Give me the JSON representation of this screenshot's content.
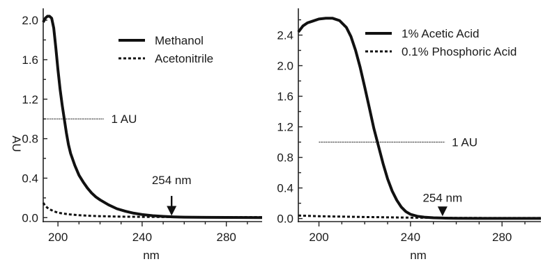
{
  "chart_data": [
    {
      "type": "line",
      "panel": "left",
      "xlabel": "nm",
      "ylabel": "AU",
      "xlim": [
        193,
        297
      ],
      "ylim": [
        -0.04,
        2.12
      ],
      "xticks": [
        "200",
        "240",
        "280"
      ],
      "yticks": [
        "0.0",
        "0.4",
        "0.8",
        "1.2",
        "1.6",
        "2.0"
      ],
      "series": [
        {
          "name": "Methanol",
          "style": "solid",
          "x": [
            193,
            194,
            195,
            196,
            197,
            198,
            199,
            200,
            201,
            202,
            203,
            204,
            205,
            206,
            208,
            210,
            212,
            214,
            216,
            218,
            220,
            224,
            228,
            232,
            236,
            240,
            245,
            250,
            255,
            260,
            270,
            280,
            297
          ],
          "y": [
            1.98,
            2.02,
            2.04,
            2.04,
            2.02,
            1.92,
            1.72,
            1.5,
            1.3,
            1.14,
            1.0,
            0.86,
            0.74,
            0.65,
            0.53,
            0.43,
            0.36,
            0.3,
            0.25,
            0.21,
            0.18,
            0.13,
            0.09,
            0.065,
            0.045,
            0.032,
            0.02,
            0.013,
            0.008,
            0.005,
            0.003,
            0.002,
            0.001
          ]
        },
        {
          "name": "Acetonitrile",
          "style": "dashed",
          "x": [
            193,
            194,
            195,
            196,
            198,
            200,
            203,
            206,
            210,
            215,
            220,
            230,
            240,
            260,
            280,
            297
          ],
          "y": [
            0.15,
            0.12,
            0.1,
            0.085,
            0.065,
            0.05,
            0.04,
            0.032,
            0.025,
            0.019,
            0.015,
            0.01,
            0.008,
            0.006,
            0.005,
            0.005
          ]
        }
      ],
      "annotations": [
        {
          "text": "1 AU",
          "value": 1.0,
          "x_from": 193,
          "x_to": 222
        },
        {
          "text": "254 nm",
          "x": 254,
          "arrow_from": 0.22,
          "arrow_to": 0.02,
          "label_at": 0.34
        }
      ]
    },
    {
      "type": "line",
      "panel": "right",
      "xlabel": "nm",
      "ylabel": "",
      "xlim": [
        191,
        297
      ],
      "ylim": [
        -0.04,
        2.75
      ],
      "xticks": [
        "200",
        "240",
        "280"
      ],
      "yticks": [
        "0.0",
        "0.4",
        "0.8",
        "1.2",
        "1.6",
        "2.0",
        "2.4"
      ],
      "series": [
        {
          "name": "1% Acetic Acid",
          "style": "solid",
          "x": [
            191,
            193,
            195,
            197,
            200,
            203,
            206,
            209,
            212,
            214,
            216,
            218,
            220,
            222,
            224,
            226,
            228,
            230,
            232,
            234,
            236,
            238,
            240,
            243,
            246,
            250,
            255,
            260,
            270,
            280,
            297
          ],
          "y": [
            2.44,
            2.52,
            2.56,
            2.58,
            2.61,
            2.62,
            2.62,
            2.59,
            2.5,
            2.38,
            2.2,
            1.98,
            1.72,
            1.45,
            1.18,
            0.95,
            0.72,
            0.52,
            0.36,
            0.24,
            0.15,
            0.09,
            0.055,
            0.03,
            0.018,
            0.01,
            0.005,
            0.003,
            0.002,
            0.002,
            0.002
          ]
        },
        {
          "name": "0.1% Phosphoric Acid",
          "style": "dashed",
          "x": [
            191,
            200,
            220,
            240,
            260,
            280,
            297
          ],
          "y": [
            0.04,
            0.03,
            0.02,
            0.012,
            0.008,
            0.006,
            0.006
          ]
        }
      ],
      "annotations": [
        {
          "text": "1 AU",
          "value": 1.0,
          "x_from": 200,
          "x_to": 255
        },
        {
          "text": "254 nm",
          "x": 254,
          "arrow_from": 0.12,
          "arrow_to": 0.03,
          "label_at": 0.22
        }
      ]
    }
  ]
}
